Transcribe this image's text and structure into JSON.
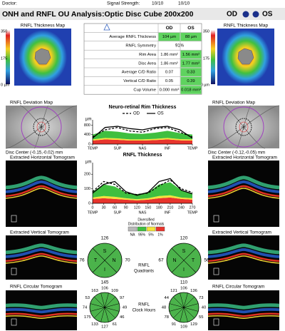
{
  "header": {
    "doctor": "Doctor:",
    "signal_label": "Signal Strength:",
    "signal_od": "10/10",
    "signal_os": "10/10",
    "title": "ONH and RNFL OU Analysis:Optic Disc Cube 200x200",
    "od": "OD",
    "os": "OS"
  },
  "thickness_map": {
    "od_title": "RNFL Thickness Map",
    "os_title": "RNFL Thickness Map",
    "scale": [
      "350",
      "175",
      "0 µm"
    ]
  },
  "table": {
    "header": [
      "OD",
      "OS"
    ],
    "rows": [
      [
        "Average RNFL Thickness",
        "104 µm",
        "88 µm"
      ],
      [
        "RNFL Symmetry",
        "91%"
      ],
      [
        "Rim Area",
        "1.86 mm²",
        "1.56 mm²"
      ],
      [
        "Disc Area",
        "1.86 mm²",
        "1.77 mm²"
      ],
      [
        "Average C/D Ratio",
        "0.07",
        "0.33"
      ],
      [
        "Vertical C/D Ratio",
        "0.05",
        "0.39"
      ],
      [
        "Cup Volume",
        "0.000 mm³",
        "0.018 mm³"
      ]
    ]
  },
  "deviation_map": {
    "od_title": "RNFL Deviation Map",
    "os_title": "RNFL Deviation Map",
    "od_disc_center": "Disc Center (-0.15,-0.02) mm",
    "os_disc_center": "Disc Center (-0.12,-0.05) mm"
  },
  "tomograms": {
    "horizontal": "Extracted Horizontal Tomogram",
    "vertical": "Extracted Vertical Tomogram",
    "circular": "RNFL Circular Tomogram"
  },
  "legend": {
    "title": [
      "Diversified",
      "Distribution of Normals"
    ],
    "labels": [
      "NA",
      "95%",
      "5%",
      "1%"
    ],
    "colors": [
      "#b8b8b8",
      "#3fbf3f",
      "#f4e23a",
      "#e8342c"
    ]
  },
  "quadrants": {
    "title": [
      "RNFL",
      "Quadrants"
    ],
    "color": "#4bb34b",
    "od": {
      "letters": [
        "S",
        "N",
        "I",
        "T"
      ],
      "values": [
        126,
        70,
        145,
        76
      ]
    },
    "os": {
      "letters": [
        "S",
        "T",
        "I",
        "N"
      ],
      "values": [
        120,
        56,
        110,
        67
      ]
    }
  },
  "clock_hours": {
    "title": [
      "RNFL",
      "Clock Hours"
    ],
    "color": "#4bb34b",
    "od": [
      106,
      109,
      97,
      49,
      46,
      61,
      127,
      133,
      175,
      74,
      53,
      163
    ],
    "os": [
      106,
      136,
      73,
      40,
      55,
      129,
      109,
      91,
      78,
      48,
      44,
      121
    ]
  },
  "chart_data": [
    {
      "type": "line",
      "title": "Neuro-retinal Rim Thickness",
      "ylabel": "µm",
      "x": [
        0,
        32,
        64,
        96,
        128,
        160,
        192,
        224,
        256
      ],
      "xlim": [
        0,
        256
      ],
      "xticks": [
        {
          "value": 0,
          "label": "TEMP"
        },
        {
          "value": 64,
          "label": "SUP"
        },
        {
          "value": 128,
          "label": "NAS"
        },
        {
          "value": 192,
          "label": "INF"
        },
        {
          "value": 256,
          "label": "TEMP"
        }
      ],
      "ylim": [
        0,
        900
      ],
      "yticks": [
        0,
        400,
        800
      ],
      "series": [
        {
          "name": "OD",
          "color": "#000000",
          "dash": true,
          "values": [
            300,
            600,
            700,
            550,
            500,
            650,
            700,
            500,
            300
          ]
        },
        {
          "name": "OS",
          "color": "#000000",
          "values": [
            250,
            700,
            750,
            650,
            600,
            700,
            750,
            600,
            250
          ]
        }
      ],
      "bands": [
        {
          "color": "#e8342c",
          "values": [
            150,
            200,
            180,
            150,
            150,
            170,
            200,
            160,
            150
          ]
        },
        {
          "color": "#f4e23a",
          "values": [
            50,
            60,
            60,
            50,
            50,
            50,
            60,
            50,
            50
          ]
        },
        {
          "color": "#3fbf3f",
          "values": [
            200,
            300,
            280,
            250,
            230,
            260,
            300,
            250,
            200
          ]
        }
      ]
    },
    {
      "type": "line",
      "title": "RNFL Thickness",
      "ylabel": "µm",
      "x": [
        0,
        30,
        60,
        90,
        120,
        150,
        180,
        210,
        240,
        270
      ],
      "xlim": [
        0,
        270
      ],
      "xticks": [
        0,
        30,
        60,
        90,
        120,
        150,
        180,
        210,
        240,
        270
      ],
      "regions": [
        "TEMP",
        "SUP",
        "NAS",
        "INF",
        "TEMP"
      ],
      "ylim": [
        0,
        260
      ],
      "yticks": [
        0,
        100,
        200
      ],
      "series": [
        {
          "name": "OD",
          "color": "#000000",
          "dash": true,
          "values": [
            80,
            150,
            130,
            70,
            60,
            70,
            120,
            160,
            100,
            75
          ]
        },
        {
          "name": "OS",
          "color": "#000000",
          "values": [
            70,
            130,
            150,
            80,
            55,
            75,
            150,
            170,
            90,
            65
          ]
        }
      ],
      "bands": [
        {
          "color": "#e8342c",
          "values": [
            30,
            35,
            30,
            25,
            20,
            25,
            35,
            40,
            30,
            25
          ]
        },
        {
          "color": "#f4e23a",
          "values": [
            10,
            15,
            15,
            10,
            8,
            10,
            15,
            15,
            10,
            10
          ]
        },
        {
          "color": "#3fbf3f",
          "values": [
            40,
            80,
            70,
            40,
            35,
            40,
            80,
            90,
            50,
            35
          ]
        }
      ]
    }
  ]
}
